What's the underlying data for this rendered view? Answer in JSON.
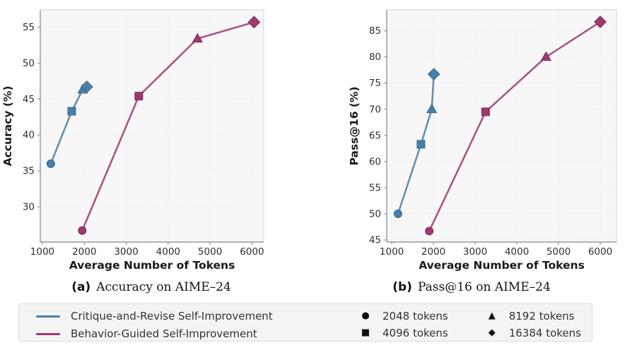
{
  "figure": {
    "plot_bg": "#f7f7f8",
    "grid_color": "#e2e2e6",
    "spine_color": "#87878c",
    "border_color": "#d3d3d7",
    "tick_label_color": "#2f2f2f",
    "axis_label_color": "#1a1a1a"
  },
  "captions": [
    {
      "tag": "(a)",
      "text": "Accuracy on AIME–24"
    },
    {
      "tag": "(b)",
      "text": "Pass@16 on AIME–24"
    }
  ],
  "legend": {
    "series": [
      {
        "label": "Critique-and-Revise Self-Improvement",
        "color": "#4a7fa7"
      },
      {
        "label": "Behavior-Guided Self-Improvement",
        "color": "#9c3a6f"
      }
    ],
    "markers": [
      {
        "glyph": "●",
        "name": "circle-marker",
        "label": "2048 tokens"
      },
      {
        "glyph": "■",
        "name": "square-marker",
        "label": "4096 tokens"
      },
      {
        "glyph": "▲",
        "name": "triangle-marker",
        "label": "8192 tokens"
      },
      {
        "glyph": "◆",
        "name": "diamond-marker",
        "label": "16384 tokens"
      }
    ]
  },
  "chart_data": [
    {
      "type": "line",
      "title": "Accuracy on AIME-24",
      "xlabel": "Average Number of Tokens",
      "ylabel": "Accuracy (%)",
      "xlim": [
        950,
        6280
      ],
      "ylim": [
        25.1,
        57.4
      ],
      "xticks": [
        1000,
        2000,
        3000,
        4000,
        5000,
        6000
      ],
      "yticks": [
        30,
        35,
        40,
        45,
        50,
        55
      ],
      "grid": true,
      "legend_position": "bottom-outside",
      "series": [
        {
          "name": "Critique-and-Revise Self-Improvement",
          "color": "#4a7fa7",
          "edge": "#3a678c",
          "x": [
            1200,
            1700,
            1960,
            2060
          ],
          "y": [
            36.0,
            43.3,
            46.3,
            46.7
          ],
          "budgets": [
            2048,
            4096,
            8192,
            16384
          ],
          "markers": [
            "circle",
            "square",
            "triangle",
            "diamond"
          ]
        },
        {
          "name": "Behavior-Guided Self-Improvement",
          "color": "#9c3a6f",
          "edge": "#7c2a56",
          "x": [
            1950,
            3300,
            4700,
            6050
          ],
          "y": [
            26.7,
            45.4,
            53.4,
            55.7
          ],
          "budgets": [
            2048,
            4096,
            8192,
            16384
          ],
          "markers": [
            "circle",
            "square",
            "triangle",
            "diamond"
          ]
        }
      ]
    },
    {
      "type": "line",
      "title": "Pass@16 on AIME-24",
      "xlabel": "Average Number of Tokens",
      "ylabel": "Pass@16 (%)",
      "xlim": [
        880,
        6390
      ],
      "ylim": [
        44.6,
        89.0
      ],
      "xticks": [
        1000,
        2000,
        3000,
        4000,
        5000,
        6000
      ],
      "yticks": [
        45,
        50,
        55,
        60,
        65,
        70,
        75,
        80,
        85
      ],
      "grid": true,
      "legend_position": "bottom-outside",
      "series": [
        {
          "name": "Critique-and-Revise Self-Improvement",
          "color": "#4a7fa7",
          "edge": "#3a678c",
          "x": [
            1150,
            1700,
            1960,
            2010
          ],
          "y": [
            50.0,
            63.3,
            70.0,
            76.7
          ],
          "budgets": [
            2048,
            4096,
            8192,
            16384
          ],
          "markers": [
            "circle",
            "square",
            "triangle",
            "diamond"
          ]
        },
        {
          "name": "Behavior-Guided Self-Improvement",
          "color": "#9c3a6f",
          "edge": "#7c2a56",
          "x": [
            1900,
            3250,
            4700,
            6000
          ],
          "y": [
            46.7,
            69.5,
            80.0,
            86.7
          ],
          "budgets": [
            2048,
            4096,
            8192,
            16384
          ],
          "markers": [
            "circle",
            "square",
            "triangle",
            "diamond"
          ]
        }
      ]
    }
  ]
}
